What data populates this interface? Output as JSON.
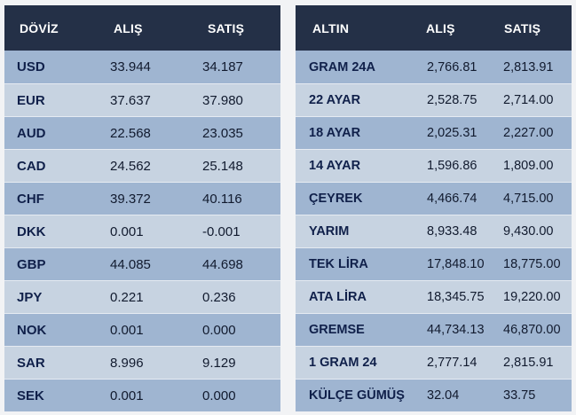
{
  "doviz_table": {
    "headers": [
      "DÖVİZ",
      "ALIŞ",
      "SATIŞ"
    ],
    "rows": [
      {
        "name": "USD",
        "buy": "33.944",
        "sell": "34.187"
      },
      {
        "name": "EUR",
        "buy": "37.637",
        "sell": "37.980"
      },
      {
        "name": "AUD",
        "buy": "22.568",
        "sell": "23.035"
      },
      {
        "name": "CAD",
        "buy": "24.562",
        "sell": "25.148"
      },
      {
        "name": "CHF",
        "buy": "39.372",
        "sell": "40.116"
      },
      {
        "name": "DKK",
        "buy": "0.001",
        "sell": "-0.001"
      },
      {
        "name": "GBP",
        "buy": "44.085",
        "sell": "44.698"
      },
      {
        "name": "JPY",
        "buy": "0.221",
        "sell": "0.236"
      },
      {
        "name": "NOK",
        "buy": "0.001",
        "sell": "0.000"
      },
      {
        "name": "SAR",
        "buy": "8.996",
        "sell": "9.129"
      },
      {
        "name": "SEK",
        "buy": "0.001",
        "sell": "0.000"
      }
    ]
  },
  "altin_table": {
    "headers": [
      "ALTIN",
      "ALIŞ",
      "SATIŞ"
    ],
    "rows": [
      {
        "name": "GRAM 24A",
        "buy": "2,766.81",
        "sell": "2,813.91"
      },
      {
        "name": "22 AYAR",
        "buy": "2,528.75",
        "sell": "2,714.00"
      },
      {
        "name": "18 AYAR",
        "buy": "2,025.31",
        "sell": "2,227.00"
      },
      {
        "name": "14 AYAR",
        "buy": "1,596.86",
        "sell": "1,809.00"
      },
      {
        "name": "ÇEYREK",
        "buy": "4,466.74",
        "sell": "4,715.00"
      },
      {
        "name": "YARIM",
        "buy": "8,933.48",
        "sell": "9,430.00"
      },
      {
        "name": "TEK LİRA",
        "buy": "17,848.10",
        "sell": "18,775.00"
      },
      {
        "name": "ATA LİRA",
        "buy": "18,345.75",
        "sell": "19,220.00"
      },
      {
        "name": "GREMSE",
        "buy": "44,734.13",
        "sell": "46,870.00"
      },
      {
        "name": "1 GRAM 24",
        "buy": "2,777.14",
        "sell": "2,815.91"
      },
      {
        "name": "KÜLÇE GÜMÜŞ",
        "buy": "32.04",
        "sell": "33.75"
      }
    ]
  },
  "colors": {
    "header_bg": "#243047",
    "row_dark": "#9fb5d1",
    "row_light": "#c7d3e1",
    "name_text": "#10204a"
  }
}
